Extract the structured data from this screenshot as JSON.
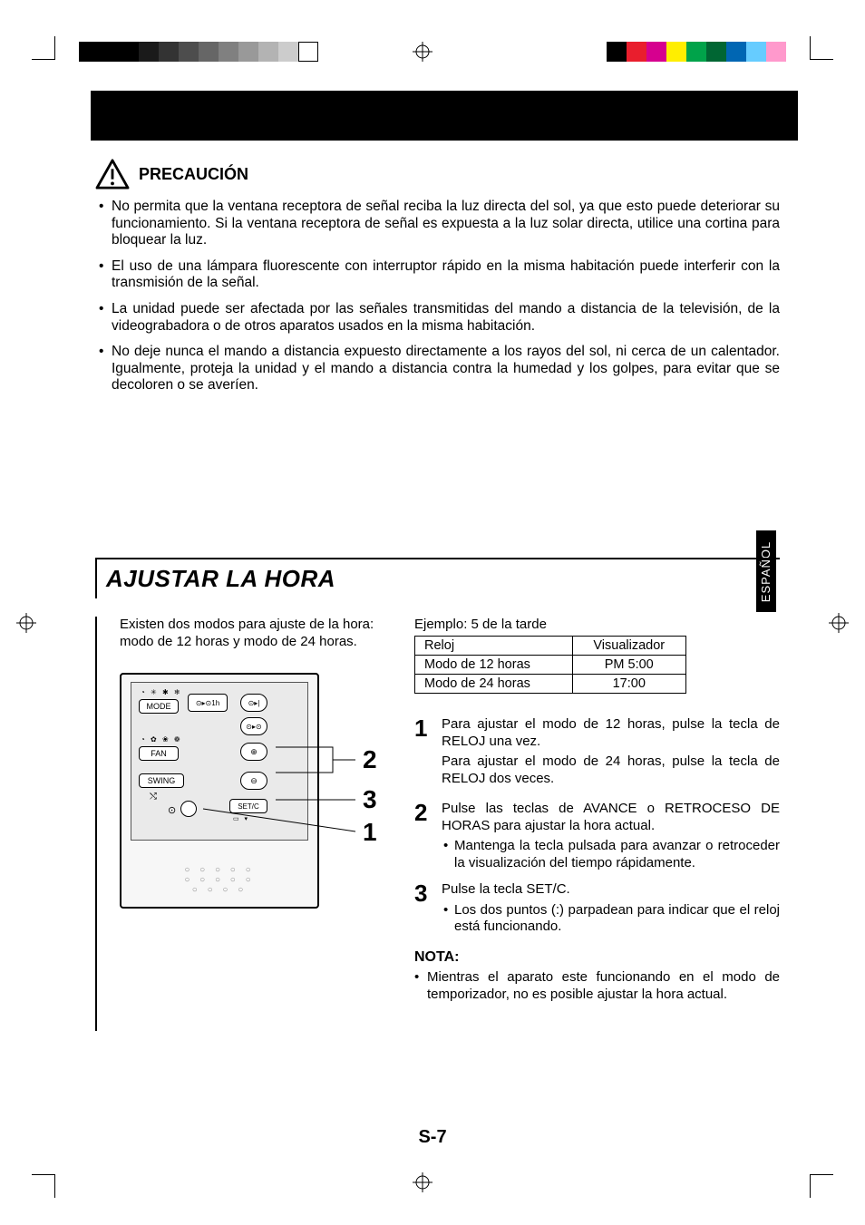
{
  "print_marks": {
    "gray_steps": [
      "#000000",
      "#000000",
      "#000000",
      "#1a1a1a",
      "#333333",
      "#4d4d4d",
      "#666666",
      "#808080",
      "#999999",
      "#b3b3b3",
      "#cccccc",
      "#ffffff"
    ],
    "color_steps": [
      "#000000",
      "#e91e2d",
      "#d6008f",
      "#ffee00",
      "#00a34a",
      "#006633",
      "#0066b3",
      "#66ccff",
      "#ff99cc"
    ]
  },
  "caution": {
    "title": "PRECAUCIÓN",
    "items": [
      "No permita que la ventana receptora de señal reciba la luz directa del sol, ya que esto puede deteriorar su funcionamiento. Si la ventana receptora de señal es expuesta a la luz solar directa, utilice una cortina para bloquear la luz.",
      "El uso de una lámpara fluorescente con interruptor rápido en la misma habitación puede interferir con la transmisión de la señal.",
      "La unidad puede ser afectada por las señales transmitidas del mando a distancia de la televisión, de la videograbadora o de otros aparatos usados en la misma habitación.",
      "No deje nunca el mando a distancia expuesto directamente a los rayos del sol, ni cerca de un calentador. Igualmente, proteja la unidad y el mando a distancia contra la humedad y los golpes, para evitar que se decoloren o se averíen."
    ]
  },
  "section": {
    "title": "AJUSTAR LA HORA",
    "intro": "Existen dos modos para ajuste de la hora: modo de 12 horas y modo de 24 horas.",
    "example_head": "Ejemplo: 5 de la tarde",
    "table": {
      "headers": [
        "Reloj",
        "Visualizador"
      ],
      "rows": [
        [
          "Modo de 12 horas",
          "PM   5:00"
        ],
        [
          "Modo de 24 horas",
          "17:00"
        ]
      ]
    },
    "callouts": {
      "n1": "1",
      "n2": "2",
      "n3": "3"
    },
    "remote_labels": {
      "mode": "MODE",
      "fan": "FAN",
      "swing": "SWING",
      "setc": "SET/C",
      "timer1h": "⊙▸⊙1h",
      "on": "⊙▸|",
      "off": "⊙▸⊙"
    },
    "steps": [
      {
        "num": "1",
        "lines": [
          "Para ajustar el modo de 12 horas, pulse la tecla de RELOJ una vez.",
          "Para ajustar el modo de 24 horas, pulse la tecla de RELOJ dos veces."
        ]
      },
      {
        "num": "2",
        "lines": [
          "Pulse las teclas de AVANCE o RETROCESO DE HORAS para ajustar la hora actual."
        ],
        "bullets": [
          "Mantenga la tecla pulsada para avanzar o retroceder la visualización del tiempo rápidamente."
        ]
      },
      {
        "num": "3",
        "lines": [
          "Pulse la tecla SET/C."
        ],
        "bullets": [
          "Los dos puntos (:) parpadean para indicar que el reloj está funcionando."
        ]
      }
    ],
    "nota_head": "NOTA:",
    "nota_body": "Mientras el aparato este funcionando en el modo de temporizador, no es posible ajustar la hora actual."
  },
  "lang_tab": "ESPAÑOL",
  "page_number": "S-7"
}
